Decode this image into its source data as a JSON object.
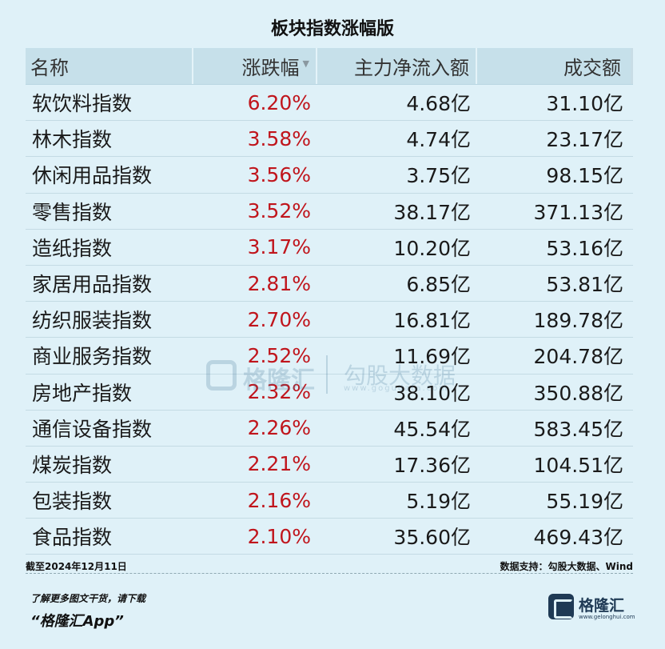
{
  "title": "板块指数涨幅版",
  "columns": {
    "name": "名称",
    "change": "涨跌幅",
    "net_inflow": "主力净流入额",
    "turnover": "成交额"
  },
  "rows": [
    {
      "name": "软饮料指数",
      "change": "6.20%",
      "net_inflow": "4.68亿",
      "turnover": "31.10亿"
    },
    {
      "name": "林木指数",
      "change": "3.58%",
      "net_inflow": "4.74亿",
      "turnover": "23.17亿"
    },
    {
      "name": "休闲用品指数",
      "change": "3.56%",
      "net_inflow": "3.75亿",
      "turnover": "98.15亿"
    },
    {
      "name": "零售指数",
      "change": "3.52%",
      "net_inflow": "38.17亿",
      "turnover": "371.13亿"
    },
    {
      "name": "造纸指数",
      "change": "3.17%",
      "net_inflow": "10.20亿",
      "turnover": "53.16亿"
    },
    {
      "name": "家居用品指数",
      "change": "2.81%",
      "net_inflow": "6.85亿",
      "turnover": "53.81亿"
    },
    {
      "name": "纺织服装指数",
      "change": "2.70%",
      "net_inflow": "16.81亿",
      "turnover": "189.78亿"
    },
    {
      "name": "商业服务指数",
      "change": "2.52%",
      "net_inflow": "11.69亿",
      "turnover": "204.78亿"
    },
    {
      "name": "房地产指数",
      "change": "2.32%",
      "net_inflow": "38.10亿",
      "turnover": "350.88亿"
    },
    {
      "name": "通信设备指数",
      "change": "2.26%",
      "net_inflow": "45.54亿",
      "turnover": "583.45亿"
    },
    {
      "name": "煤炭指数",
      "change": "2.21%",
      "net_inflow": "17.36亿",
      "turnover": "104.51亿"
    },
    {
      "name": "包装指数",
      "change": "2.16%",
      "net_inflow": "5.19亿",
      "turnover": "55.19亿"
    },
    {
      "name": "食品指数",
      "change": "2.10%",
      "net_inflow": "35.60亿",
      "turnover": "469.43亿"
    }
  ],
  "footer": {
    "date": "截至2024年12月11日",
    "source": "数据支持：勾股大数据、Wind",
    "promo_line1": "了解更多图文干货，请下载",
    "promo_line2": "“格隆汇App”"
  },
  "watermark": {
    "brand": "格隆汇",
    "partner": "勾股大数据",
    "url": "www.gogudata.com"
  },
  "logo": {
    "name": "格隆汇",
    "url": "www.gelonghui.com"
  },
  "colors": {
    "background": "#dff1f8",
    "header_bg": "#c6e0ea",
    "positive": "#c0151c"
  },
  "icons": {
    "sort": "sort-down-icon",
    "logo": "gelonghui-g-logo-icon"
  }
}
